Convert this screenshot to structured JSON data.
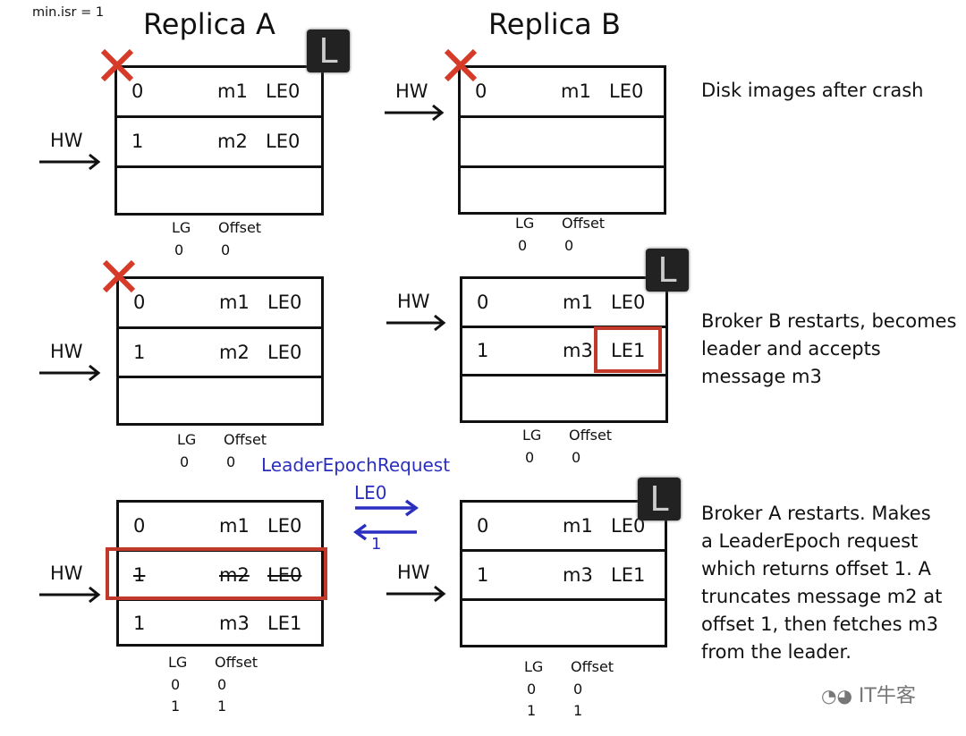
{
  "header": {
    "min_isr": "min.isr = 1",
    "replica_a": "Replica A",
    "replica_b": "Replica B"
  },
  "colors": {
    "highlight": "#c0392b",
    "request": "#2b2fbf",
    "leader_badge": "#222222"
  },
  "hw_label": "HW",
  "leader_badge": "L",
  "lg_header": {
    "lg": "LG",
    "offset": "Offset"
  },
  "panels": [
    {
      "replica": "A",
      "crashed": true,
      "leader": true,
      "hw_row": 1,
      "rows": [
        [
          "0",
          "m1",
          "LE0"
        ],
        [
          "1",
          "m2",
          "LE0"
        ],
        [
          "",
          "",
          ""
        ]
      ],
      "epochs": [
        [
          "0",
          "0"
        ]
      ]
    },
    {
      "replica": "B",
      "crashed": true,
      "leader": false,
      "hw_row": 0,
      "rows": [
        [
          "0",
          "m1",
          "LE0"
        ],
        [
          "",
          "",
          ""
        ],
        [
          "",
          "",
          ""
        ]
      ],
      "epochs": [
        [
          "0",
          "0"
        ]
      ]
    },
    {
      "replica": "A",
      "crashed": true,
      "leader": false,
      "hw_row": 1,
      "rows": [
        [
          "0",
          "m1",
          "LE0"
        ],
        [
          "1",
          "m2",
          "LE0"
        ],
        [
          "",
          "",
          ""
        ]
      ],
      "epochs": [
        [
          "0",
          "0"
        ]
      ]
    },
    {
      "replica": "B",
      "crashed": false,
      "leader": true,
      "hw_row": 0,
      "rows": [
        [
          "0",
          "m1",
          "LE0"
        ],
        [
          "1",
          "m3",
          "LE1"
        ],
        [
          "",
          "",
          ""
        ]
      ],
      "epochs": [
        [
          "0",
          "0"
        ]
      ],
      "highlight": "LE1"
    },
    {
      "replica": "A",
      "crashed": false,
      "leader": false,
      "hw_row": 1,
      "rows": [
        [
          "0",
          "m1",
          "LE0"
        ],
        [
          "1",
          "m2",
          "LE0"
        ],
        [
          "1",
          "m3",
          "LE1"
        ]
      ],
      "epochs": [
        [
          "0",
          "0"
        ],
        [
          "1",
          "1"
        ]
      ],
      "truncated_row": 1
    },
    {
      "replica": "B",
      "crashed": false,
      "leader": true,
      "hw_row": 1,
      "rows": [
        [
          "0",
          "m1",
          "LE0"
        ],
        [
          "1",
          "m3",
          "LE1"
        ],
        [
          "",
          "",
          ""
        ]
      ],
      "epochs": [
        [
          "0",
          "0"
        ],
        [
          "1",
          "1"
        ]
      ]
    }
  ],
  "request": {
    "title": "LeaderEpochRequest",
    "send": "LE0",
    "reply": "1"
  },
  "captions": [
    "Disk images after crash",
    "Broker B restarts, becomes leader and accepts message m3",
    "Broker A restarts. Makes a LeaderEpoch request which returns offset 1. A truncates message m2 at offset 1, then fetches m3 from the leader."
  ],
  "watermark": "IT牛客"
}
